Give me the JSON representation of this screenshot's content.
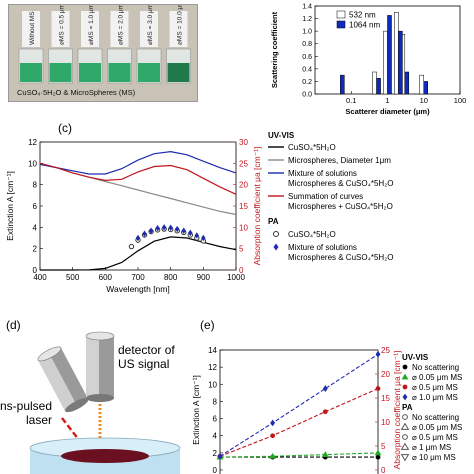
{
  "photo": {
    "vial_labels": [
      "Without MS",
      "⌀MS = 0.5 μm",
      "⌀MS = 1.0 μm",
      "⌀MS = 2.0 μm",
      "⌀MS = 3.0 μm",
      "⌀MS = 10.0 μm"
    ],
    "caption": "CuSO₄·5H₂O & MicroSpheres (MS)",
    "colors": {
      "liquid": "#2fa86a",
      "dark_liquid": "#1f7a4a",
      "background": "#c9c2b6"
    }
  },
  "panel_c_label": "(c)",
  "panel_d_label": "(d)",
  "panel_e_label": "(e)",
  "diagram_d": {
    "detector_label_1": "detector of",
    "detector_label_2": "US signal",
    "laser_label_1": "ns-pulsed",
    "laser_label_2": "laser"
  },
  "chart_data": [
    {
      "id": "scattering",
      "type": "bar",
      "xlabel": "Scatterer diameter (μm)",
      "ylabel": "Scattering coefficient",
      "xscale": "log",
      "xlim": [
        0.01,
        100
      ],
      "ylim": [
        0,
        1.4
      ],
      "xticks": [
        "0.1",
        "1",
        "10",
        "100"
      ],
      "yticks": [
        "0.0",
        "0.2",
        "0.4",
        "0.6",
        "0.8",
        "1.0",
        "1.2",
        "1.4"
      ],
      "categories": [
        0.05,
        0.5,
        1.0,
        2.0,
        3.0,
        10.0
      ],
      "legend_position": "top-right",
      "series": [
        {
          "name": "532 nm",
          "color": "#ffffff",
          "values": [
            0.0,
            0.35,
            1.0,
            1.3,
            0.95,
            0.3
          ]
        },
        {
          "name": "1064 nm",
          "color": "#0e2bbf",
          "values": [
            0.3,
            0.25,
            1.25,
            1.0,
            0.35,
            0.2
          ]
        }
      ]
    },
    {
      "id": "spectra",
      "type": "line",
      "xlabel": "Wavelength [nm]",
      "ylabel_left": "Extinction A [cm⁻¹]",
      "ylabel_right": "Absorption coefficient μa [cm⁻¹]",
      "xlim": [
        400,
        1000
      ],
      "ylim_left": [
        0,
        12
      ],
      "ylim_right": [
        0,
        30
      ],
      "xticks": [
        "400",
        "500",
        "600",
        "700",
        "800",
        "900",
        "1000"
      ],
      "yticks_left": [
        "0",
        "2",
        "4",
        "6",
        "8",
        "10",
        "12"
      ],
      "yticks_right": [
        "0",
        "5",
        "10",
        "15",
        "20",
        "25",
        "30"
      ],
      "legend_uvvis_title": "UV-VIS",
      "legend_pa_title": "PA",
      "legend_lines": [
        {
          "label": "CuSO₄*5H₂O",
          "color": "#000000"
        },
        {
          "label": "Microspheres, Diameter 1μm",
          "color": "#888888"
        },
        {
          "label": "Mixture of solutions",
          "label2": "Microspheres & CuSO₄*5H₂O",
          "color": "#1f2bb0"
        },
        {
          "label": "Summation of curves",
          "label2": "Microspheres + CuSO₄*5H₂O",
          "color": "#c0161d"
        }
      ],
      "legend_points": [
        {
          "label": "CuSO₄*5H₂O",
          "marker": "open-circle"
        },
        {
          "label": "Mixture of solutions",
          "label2": "Microspheres & CuSO₄*5H₂O",
          "marker": "filled-diamond"
        }
      ],
      "series": [
        {
          "name": "CuSO₄*5H₂O",
          "color": "#000000",
          "x": [
            400,
            450,
            500,
            550,
            600,
            650,
            700,
            750,
            800,
            850,
            900,
            950,
            1000
          ],
          "y": [
            0,
            0,
            0,
            0.02,
            0.15,
            0.7,
            1.8,
            2.7,
            3.1,
            3.0,
            2.6,
            2.2,
            1.9
          ]
        },
        {
          "name": "Microspheres, Diameter 1μm",
          "color": "#888888",
          "x": [
            400,
            450,
            500,
            550,
            600,
            650,
            700,
            750,
            800,
            850,
            900,
            950,
            1000
          ],
          "y": [
            10.0,
            9.6,
            9.1,
            8.7,
            8.3,
            7.9,
            7.5,
            7.1,
            6.7,
            6.3,
            5.9,
            5.5,
            5.2
          ]
        },
        {
          "name": "Mixture of solutions",
          "color": "#1f2bb0",
          "x": [
            400,
            450,
            500,
            550,
            600,
            650,
            700,
            750,
            800,
            850,
            900,
            950,
            1000
          ],
          "y": [
            9.9,
            9.6,
            9.3,
            9.0,
            9.0,
            9.5,
            10.3,
            10.9,
            11.1,
            10.8,
            10.2,
            9.6,
            9.1
          ]
        },
        {
          "name": "Summation of curves",
          "color": "#c0161d",
          "x": [
            400,
            450,
            500,
            550,
            600,
            650,
            700,
            750,
            800,
            850,
            900,
            950,
            1000
          ],
          "y": [
            10.0,
            9.6,
            9.1,
            8.7,
            8.4,
            8.5,
            9.2,
            9.7,
            9.8,
            9.4,
            8.6,
            7.8,
            7.1
          ]
        },
        {
          "name": "PA CuSO₄*5H₂O",
          "marker": "open-circle",
          "axis": "right",
          "x": [
            680,
            700,
            720,
            740,
            760,
            780,
            800,
            820,
            840,
            860,
            880,
            900
          ],
          "y": [
            5.5,
            7.0,
            8.2,
            9.0,
            9.4,
            9.6,
            9.5,
            9.2,
            8.8,
            8.2,
            7.5,
            6.8
          ]
        },
        {
          "name": "PA Mixture",
          "marker": "filled-diamond",
          "axis": "right",
          "x": [
            700,
            720,
            740,
            760,
            780,
            800,
            820,
            840,
            860,
            880,
            900
          ],
          "y": [
            7.5,
            8.5,
            9.2,
            9.8,
            10.0,
            9.9,
            9.6,
            9.2,
            8.7,
            8.1,
            7.5
          ]
        }
      ]
    },
    {
      "id": "concentration",
      "type": "scatter",
      "ylabel_left": "Extinction A [cm⁻¹]",
      "ylabel_right": "Absorption coefficient μa [cm⁻¹]",
      "xlim": [
        0,
        1.5
      ],
      "ylim_left": [
        0,
        14
      ],
      "ylim_right": [
        0,
        25
      ],
      "xticks": [
        "0.0",
        "0.5",
        "1.0",
        "1.5"
      ],
      "yticks_left": [
        "0",
        "2",
        "4",
        "6",
        "8",
        "10",
        "12",
        "14"
      ],
      "yticks_right": [
        "0",
        "5",
        "10",
        "15",
        "20",
        "25"
      ],
      "legend_uvvis_title": "UV-VIS",
      "legend_pa_title": "PA",
      "legend_uvvis": [
        {
          "label": "No scattering",
          "marker": "filled-circle",
          "color": "#000000"
        },
        {
          "label": "⌀ 0.05 μm MS",
          "marker": "filled-triangle",
          "color": "#22aa22"
        },
        {
          "label": "⌀ 0.5 μm MS",
          "marker": "filled-circle",
          "color": "#c0161d"
        },
        {
          "label": "⌀ 1.0 μm MS",
          "marker": "filled-diamond",
          "color": "#1f2bb0"
        }
      ],
      "legend_pa": [
        {
          "label": "No scattering",
          "marker": "open-circle",
          "color": "#555555"
        },
        {
          "label": "⌀ 0.05 μm MS",
          "marker": "open-triangle",
          "color": "#555555"
        },
        {
          "label": "⌀ 0.5 μm MS",
          "marker": "open-circle",
          "color": "#555555"
        },
        {
          "label": "⌀ 1 μm MS",
          "marker": "open-triangle",
          "color": "#555555"
        },
        {
          "label": "⌀ 10 μm MS",
          "marker": "open-triangle-down",
          "color": "#555555"
        }
      ],
      "series": [
        {
          "name": "No scattering",
          "color": "#000000",
          "x": [
            0.0,
            0.5,
            1.0,
            1.5
          ],
          "y": [
            1.5,
            1.5,
            1.5,
            1.5
          ]
        },
        {
          "name": "⌀ 0.05 μm MS",
          "color": "#22aa22",
          "x": [
            0.0,
            0.5,
            1.0,
            1.5
          ],
          "y": [
            1.5,
            1.6,
            1.8,
            2.0
          ]
        },
        {
          "name": "⌀ 0.5 μm MS",
          "color": "#c0161d",
          "x": [
            0.0,
            0.5,
            1.0,
            1.5
          ],
          "y": [
            1.6,
            4.0,
            6.8,
            9.5
          ]
        },
        {
          "name": "⌀ 1.0 μm MS",
          "color": "#1f2bb0",
          "x": [
            0.0,
            0.5,
            1.0,
            1.5
          ],
          "y": [
            1.6,
            5.5,
            9.5,
            13.5
          ]
        }
      ]
    }
  ]
}
